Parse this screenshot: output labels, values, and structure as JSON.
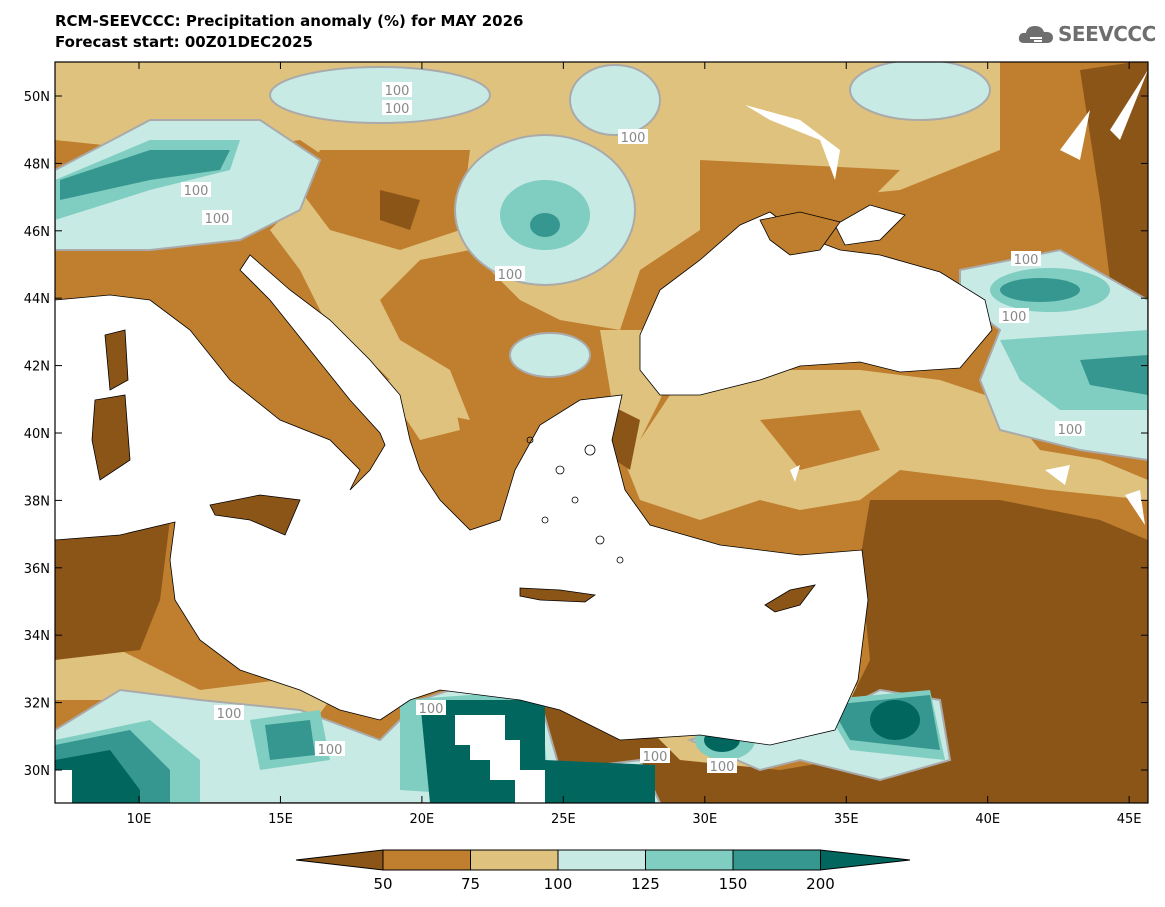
{
  "header": {
    "title": "RCM-SEEVCCC: Precipitation anomaly (%) for MAY 2026",
    "subtitle": "Forecast start: 00Z01DEC2025"
  },
  "logo": {
    "text": "SEEVCCC",
    "icon": "cloud-icon"
  },
  "map": {
    "lat_ticks": [
      "50N",
      "48N",
      "46N",
      "44N",
      "42N",
      "40N",
      "38N",
      "36N",
      "34N",
      "32N",
      "30N"
    ],
    "lat_values": [
      50,
      48,
      46,
      44,
      42,
      40,
      38,
      36,
      34,
      32,
      30
    ],
    "lon_ticks": [
      "10E",
      "15E",
      "20E",
      "25E",
      "30E",
      "35E",
      "40E",
      "45E"
    ],
    "lon_values": [
      10,
      15,
      20,
      25,
      30,
      35,
      40,
      45
    ],
    "contour_label": "100"
  },
  "colorbar": {
    "levels": [
      "50",
      "75",
      "100",
      "125",
      "150",
      "200"
    ],
    "colors": [
      "#8c5518",
      "#bf7f2f",
      "#dfc27d",
      "#c7eae5",
      "#80cdc1",
      "#35978f",
      "#01665e"
    ]
  }
}
